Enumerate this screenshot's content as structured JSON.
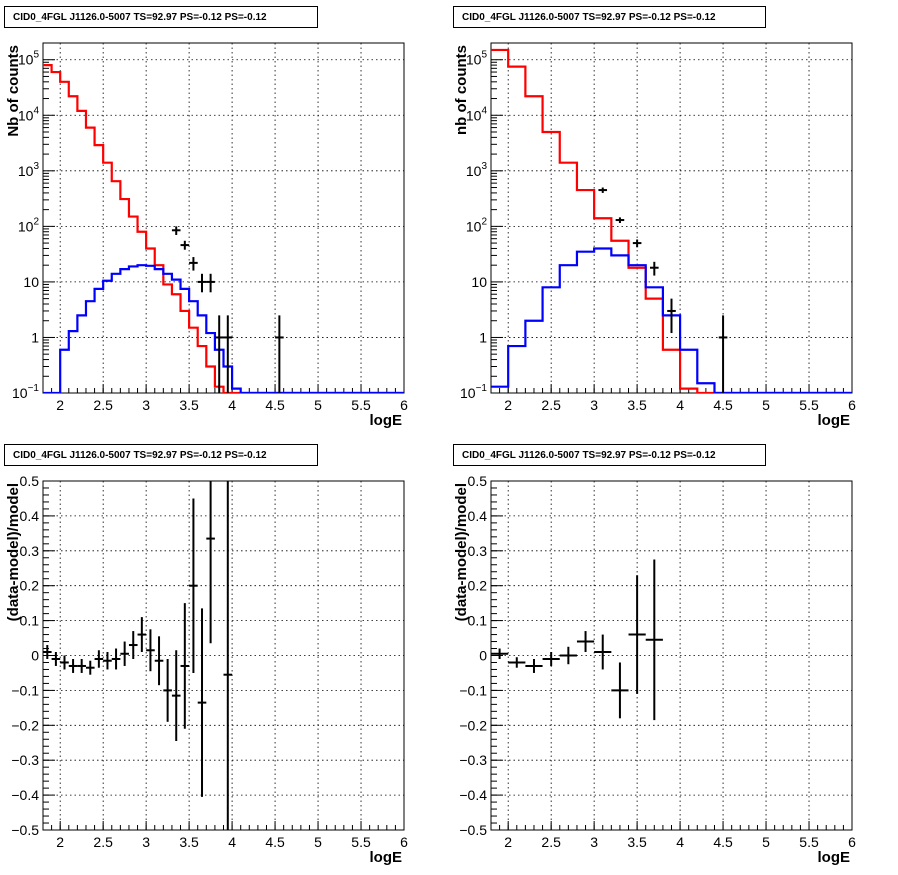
{
  "chart_data": [
    {
      "type": "histogram",
      "title": "CID0_4FGL J1126.0-5007 TS=92.97 PS=-0.12 PS=-0.12",
      "xlabel": "logE",
      "ylabel": "Nb of counts",
      "xlim": [
        1.8,
        6.0
      ],
      "ylim": [
        0.1,
        200000
      ],
      "yscale": "log",
      "grid": true,
      "x_ticks": [
        "2",
        "2.5",
        "3",
        "3.5",
        "4",
        "4.5",
        "5",
        "5.5",
        "6"
      ],
      "y_ticks": [
        "10^-1",
        "1",
        "10",
        "10^2",
        "10^3",
        "10^4",
        "10^5"
      ],
      "bin_edges": [
        1.8,
        1.9,
        2.0,
        2.1,
        2.2,
        2.3,
        2.4,
        2.5,
        2.6,
        2.7,
        2.8,
        2.9,
        3.0,
        3.1,
        3.2,
        3.3,
        3.4,
        3.5,
        3.6,
        3.7,
        3.8,
        3.9,
        4.0,
        4.1,
        4.2,
        4.3,
        4.4,
        4.5,
        4.6,
        4.7,
        4.8,
        4.9,
        5.0,
        5.1,
        5.2,
        5.3,
        5.4,
        5.5,
        5.6,
        5.7,
        5.8,
        5.9,
        6.0
      ],
      "series": [
        {
          "color": "#ff0000",
          "values": [
            80000,
            60000,
            40000,
            22000,
            12000,
            6000,
            2900,
            1400,
            650,
            310,
            150,
            80,
            40,
            20,
            9,
            6,
            3,
            1.5,
            0.7,
            0.3,
            0.13,
            0.1,
            0.1,
            0.1,
            0.1,
            0.1,
            0.1,
            0.1,
            0.1,
            0.1,
            0.1,
            0.1,
            0.1,
            0.1,
            0.1,
            0.1,
            0.1,
            0.1,
            0.1,
            0.1,
            0.1,
            0.1
          ]
        },
        {
          "color": "#0000ff",
          "values": [
            0.1,
            0.1,
            0.6,
            1.3,
            2.5,
            4.5,
            7.5,
            10.5,
            14,
            17,
            19,
            20,
            19.5,
            17,
            14,
            11,
            7.5,
            4.5,
            2.5,
            1.2,
            0.6,
            0.3,
            0.12,
            0.1,
            0.1,
            0.1,
            0.1,
            0.1,
            0.1,
            0.1,
            0.1,
            0.1,
            0.1,
            0.1,
            0.1,
            0.1,
            0.1,
            0.1,
            0.1,
            0.1,
            0.1,
            0.1
          ]
        }
      ],
      "points": {
        "x": [
          3.35,
          3.45,
          3.55,
          3.65,
          3.75,
          3.85,
          3.95,
          4.55
        ],
        "y": [
          85,
          46,
          22,
          10,
          10,
          1,
          1,
          1
        ],
        "ylo": [
          70,
          38,
          16,
          6.5,
          6.5,
          0.1,
          0.1,
          0.1
        ],
        "yhi": [
          100,
          55,
          28,
          14,
          14,
          2.5,
          2.5,
          2.5
        ]
      }
    },
    {
      "type": "histogram",
      "title": "CID0_4FGL J1126.0-5007 TS=92.97 PS=-0.12 PS=-0.12",
      "xlabel": "logE",
      "ylabel": "nb of counts",
      "xlim": [
        1.8,
        6.0
      ],
      "ylim": [
        0.1,
        200000
      ],
      "yscale": "log",
      "grid": true,
      "x_ticks": [
        "2",
        "2.5",
        "3",
        "3.5",
        "4",
        "4.5",
        "5",
        "5.5",
        "6"
      ],
      "y_ticks": [
        "10^-1",
        "1",
        "10",
        "10^2",
        "10^3",
        "10^4",
        "10^5"
      ],
      "bin_edges": [
        1.8,
        2.0,
        2.2,
        2.4,
        2.6,
        2.8,
        3.0,
        3.2,
        3.4,
        3.6,
        3.8,
        4.0,
        4.2,
        4.4,
        4.6,
        4.8,
        5.0,
        5.2,
        5.4,
        5.6,
        5.8,
        6.0
      ],
      "series": [
        {
          "color": "#ff0000",
          "values": [
            150000,
            75000,
            22000,
            5000,
            1400,
            450,
            140,
            55,
            18,
            5,
            0.6,
            0.12,
            0.1,
            0.1,
            0.1,
            0.1,
            0.1,
            0.1,
            0.1,
            0.1,
            0.1
          ]
        },
        {
          "color": "#0000ff",
          "values": [
            0.13,
            0.7,
            2,
            8,
            20,
            35,
            40,
            30,
            20,
            8,
            2.5,
            0.6,
            0.15,
            0.1,
            0.1,
            0.1,
            0.1,
            0.1,
            0.1,
            0.1,
            0.1
          ]
        }
      ],
      "points": {
        "x": [
          3.1,
          3.3,
          3.5,
          3.7,
          3.9,
          4.5
        ],
        "y": [
          450,
          130,
          50,
          18,
          3,
          1
        ],
        "ylo": [
          400,
          115,
          42,
          13,
          1.2,
          0.1
        ],
        "yhi": [
          500,
          145,
          58,
          23,
          5,
          2.5
        ]
      }
    },
    {
      "type": "scatter",
      "title": "CID0_4FGL J1126.0-5007 TS=92.97 PS=-0.12 PS=-0.12",
      "xlabel": "logE",
      "ylabel": "(data-model)/model",
      "xlim": [
        1.8,
        6.0
      ],
      "ylim": [
        -0.5,
        0.5
      ],
      "grid": true,
      "x_ticks": [
        "2",
        "2.5",
        "3",
        "3.5",
        "4",
        "4.5",
        "5",
        "5.5",
        "6"
      ],
      "y_ticks": [
        "-0.5",
        "-0.4",
        "-0.3",
        "-0.2",
        "-0.1",
        "0",
        "0.1",
        "0.2",
        "0.3",
        "0.4",
        "0.5"
      ],
      "points": {
        "x": [
          1.85,
          1.95,
          2.05,
          2.15,
          2.25,
          2.35,
          2.45,
          2.55,
          2.65,
          2.75,
          2.85,
          2.95,
          3.05,
          3.15,
          3.25,
          3.35,
          3.45,
          3.55,
          3.65,
          3.75,
          3.95
        ],
        "y": [
          0.01,
          -0.01,
          -0.02,
          -0.03,
          -0.03,
          -0.035,
          -0.01,
          -0.015,
          -0.01,
          0.005,
          0.03,
          0.06,
          0.015,
          -0.015,
          -0.1,
          -0.115,
          -0.03,
          0.2,
          -0.135,
          0.335,
          -0.055
        ],
        "err": [
          0.02,
          0.02,
          0.02,
          0.02,
          0.02,
          0.02,
          0.025,
          0.025,
          0.03,
          0.035,
          0.04,
          0.05,
          0.06,
          0.07,
          0.09,
          0.13,
          0.18,
          0.25,
          0.27,
          0.3,
          0.56
        ],
        "xerr": 0.05
      }
    },
    {
      "type": "scatter",
      "title": "CID0_4FGL J1126.0-5007 TS=92.97 PS=-0.12 PS=-0.12",
      "xlabel": "logE",
      "ylabel": "(data-model)/model",
      "xlim": [
        1.8,
        6.0
      ],
      "ylim": [
        -0.5,
        0.5
      ],
      "grid": true,
      "x_ticks": [
        "2",
        "2.5",
        "3",
        "3.5",
        "4",
        "4.5",
        "5",
        "5.5",
        "6"
      ],
      "y_ticks": [
        "-0.5",
        "-0.4",
        "-0.3",
        "-0.2",
        "-0.1",
        "0",
        "0.1",
        "0.2",
        "0.3",
        "0.4",
        "0.5"
      ],
      "points": {
        "x": [
          1.9,
          2.1,
          2.3,
          2.5,
          2.7,
          2.9,
          3.1,
          3.3,
          3.5,
          3.7
        ],
        "y": [
          0.005,
          -0.02,
          -0.03,
          -0.01,
          0.0,
          0.04,
          0.01,
          -0.1,
          0.06,
          0.045
        ],
        "err": [
          0.015,
          0.015,
          0.02,
          0.02,
          0.025,
          0.03,
          0.05,
          0.08,
          0.17,
          0.23
        ],
        "xerr": 0.1
      }
    }
  ]
}
